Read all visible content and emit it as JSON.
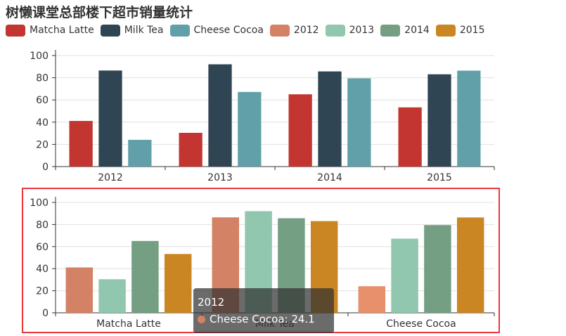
{
  "chart_data": [
    {
      "type": "bar",
      "title": "树懒课堂总部楼下超市销量统计",
      "categories": [
        "2012",
        "2013",
        "2014",
        "2015"
      ],
      "series": [
        {
          "name": "Matcha Latte",
          "values": [
            41.1,
            30.4,
            65.1,
            53.3
          ]
        },
        {
          "name": "Milk Tea",
          "values": [
            86.5,
            92.1,
            85.7,
            83.1
          ]
        },
        {
          "name": "Cheese Cocoa",
          "values": [
            24.1,
            67.2,
            79.5,
            86.4
          ]
        }
      ],
      "ylim": [
        0,
        100
      ],
      "yticks": [
        0,
        20,
        40,
        60,
        80,
        100
      ],
      "grid": true
    },
    {
      "type": "bar",
      "categories": [
        "Matcha Latte",
        "Milk Tea",
        "Cheese Cocoa"
      ],
      "series": [
        {
          "name": "2012",
          "values": [
            41.1,
            86.5,
            24.1
          ]
        },
        {
          "name": "2013",
          "values": [
            30.4,
            92.1,
            67.2
          ]
        },
        {
          "name": "2014",
          "values": [
            65.1,
            85.7,
            79.5
          ]
        },
        {
          "name": "2015",
          "values": [
            53.3,
            83.1,
            86.4
          ]
        }
      ],
      "ylim": [
        0,
        100
      ],
      "yticks": [
        0,
        20,
        40,
        60,
        80,
        100
      ],
      "grid": true
    }
  ],
  "legend": [
    {
      "label": "Matcha Latte",
      "color": "#c23531"
    },
    {
      "label": "Milk Tea",
      "color": "#2f4554"
    },
    {
      "label": "Cheese Cocoa",
      "color": "#61a0a8"
    },
    {
      "label": "2012",
      "color": "#d48265"
    },
    {
      "label": "2013",
      "color": "#91c7ae"
    },
    {
      "label": "2014",
      "color": "#749f83"
    },
    {
      "label": "2015",
      "color": "#ca8622"
    }
  ],
  "colors": {
    "top": [
      "#c23531",
      "#2f4554",
      "#61a0a8"
    ],
    "bottom": [
      "#d48265",
      "#91c7ae",
      "#749f83",
      "#ca8622"
    ],
    "highlighted_bar": "#e8906c",
    "highlight_border": "#e8383d"
  },
  "tooltip": {
    "title": "2012",
    "series_label": "Cheese Cocoa: 24.1",
    "dot_color": "#d48265"
  }
}
